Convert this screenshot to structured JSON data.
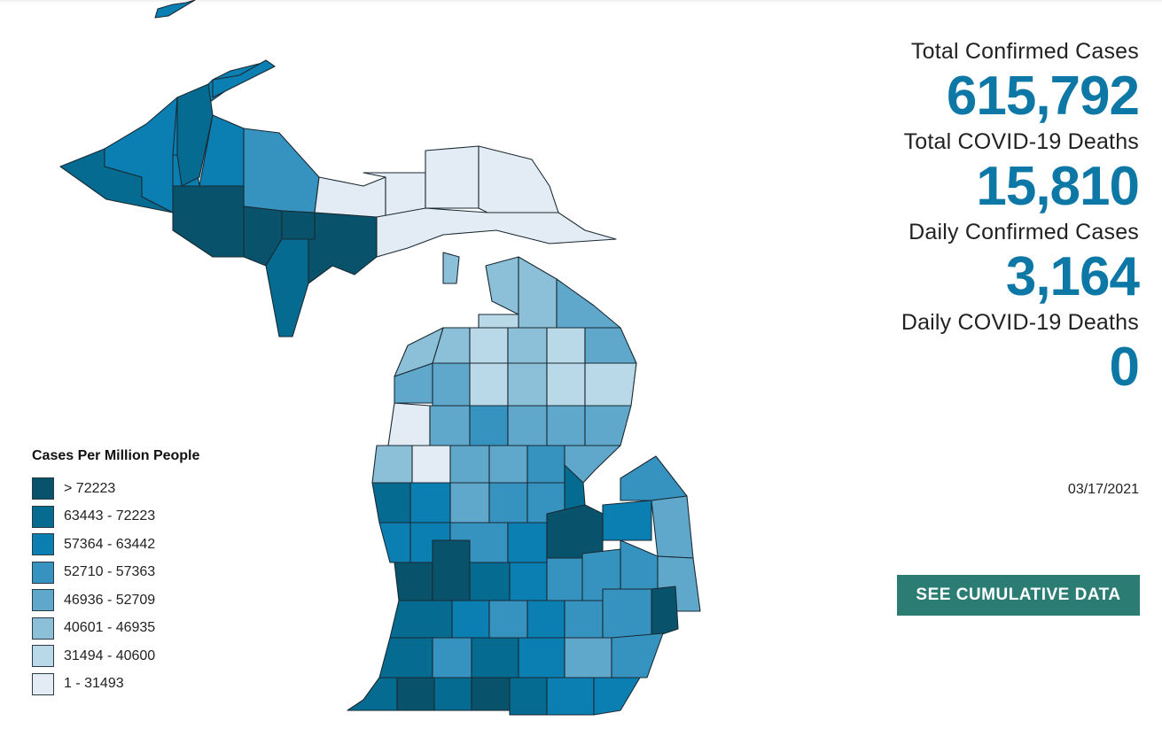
{
  "stats": [
    {
      "label": "Total Confirmed Cases",
      "value": "615,792"
    },
    {
      "label": "Total COVID-19 Deaths",
      "value": "15,810"
    },
    {
      "label": "Daily Confirmed Cases",
      "value": "3,164"
    },
    {
      "label": "Daily COVID-19 Deaths",
      "value": "0"
    }
  ],
  "date": "03/17/2021",
  "cta": {
    "label": "SEE CUMULATIVE DATA"
  },
  "legend": {
    "title": "Cases Per Million People",
    "bins": [
      {
        "label": "> 72223",
        "color": "#08536b"
      },
      {
        "label": "63443 - 72223",
        "color": "#066b91"
      },
      {
        "label": "57364 - 63442",
        "color": "#0b7fb2"
      },
      {
        "label": "52710 - 57363",
        "color": "#3693bf"
      },
      {
        "label": "46936 - 52709",
        "color": "#5fa8cb"
      },
      {
        "label": "40601 - 46935",
        "color": "#8cc0d9"
      },
      {
        "label": "31494 - 40600",
        "color": "#b9d8e8"
      },
      {
        "label": "1 - 31493",
        "color": "#e3ecf4"
      }
    ]
  }
}
